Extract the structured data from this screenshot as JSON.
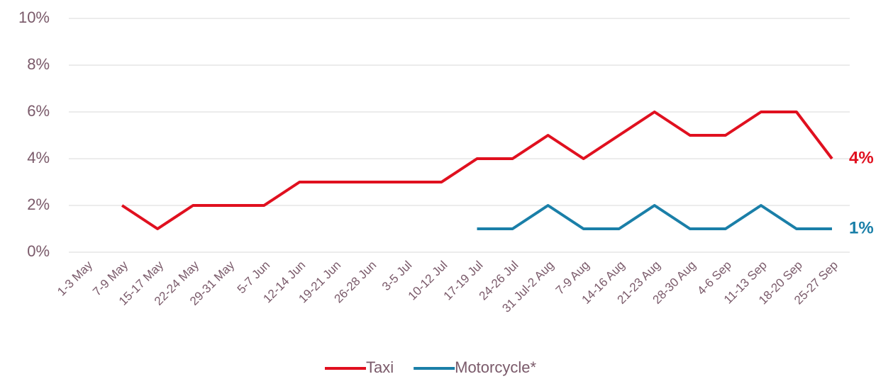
{
  "chart_data": {
    "type": "line",
    "categories": [
      "1-3 May",
      "7-9 May",
      "15-17 May",
      "22-24 May",
      "29-31 May",
      "5-7 Jun",
      "12-14 Jun",
      "19-21 Jun",
      "26-28 Jun",
      "3-5 Jul",
      "10-12 Jul",
      "17-19 Jul",
      "24-26 Jul",
      "31 Jul-2 Aug",
      "7-9 Aug",
      "14-16 Aug",
      "21-23 Aug",
      "28-30 Aug",
      "4-6 Sep",
      "11-13 Sep",
      "18-20 Sep",
      "25-27 Sep"
    ],
    "series": [
      {
        "name": "Taxi",
        "color": "#e0101f",
        "values": [
          null,
          2,
          1,
          2,
          2,
          2,
          3,
          3,
          3,
          3,
          3,
          4,
          4,
          5,
          4,
          5,
          6,
          5,
          5,
          6,
          6,
          4
        ],
        "value_labels": [
          null,
          null,
          null,
          null,
          null,
          null,
          null,
          null,
          null,
          null,
          null,
          null,
          null,
          null,
          null,
          null,
          null,
          null,
          null,
          null,
          null,
          "4%"
        ]
      },
      {
        "name": "Motorcycle*",
        "color": "#1a7fa8",
        "values": [
          null,
          null,
          null,
          null,
          null,
          null,
          null,
          null,
          null,
          null,
          null,
          1,
          1,
          2,
          1,
          1,
          2,
          1,
          1,
          2,
          1,
          1
        ],
        "value_labels": [
          null,
          null,
          null,
          null,
          null,
          null,
          null,
          null,
          null,
          null,
          null,
          null,
          null,
          null,
          null,
          null,
          null,
          null,
          null,
          null,
          null,
          "1%"
        ]
      }
    ],
    "ylim": [
      0,
      10
    ],
    "yticks": [
      {
        "value": 0,
        "label": "0%"
      },
      {
        "value": 2,
        "label": "2%"
      },
      {
        "value": 4,
        "label": "4%"
      },
      {
        "value": 6,
        "label": "6%"
      },
      {
        "value": 8,
        "label": "8%"
      },
      {
        "value": 10,
        "label": "10%"
      }
    ],
    "grid": true,
    "legend": "bottom"
  }
}
